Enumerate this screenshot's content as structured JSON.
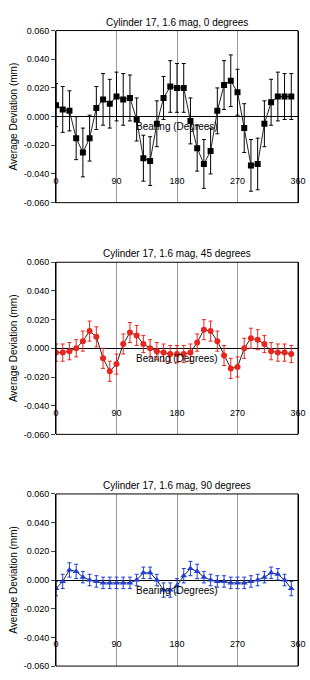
{
  "chart_data": [
    {
      "type": "line",
      "title": "Cylinder 17, 1.6 mag, 0 degrees",
      "xlabel": "Bearing (Degrees)",
      "ylabel": "Average Deviation (mm)",
      "x": [
        0,
        10,
        20,
        30,
        40,
        50,
        60,
        70,
        80,
        90,
        100,
        110,
        120,
        130,
        140,
        150,
        160,
        170,
        180,
        190,
        200,
        210,
        220,
        230,
        240,
        250,
        260,
        270,
        280,
        290,
        300,
        310,
        320,
        330,
        340,
        350
      ],
      "series": [
        {
          "color": "#000000",
          "marker": "square",
          "values": [
            0.008,
            0.005,
            0.004,
            -0.015,
            -0.025,
            -0.015,
            0.006,
            0.012,
            0.009,
            0.014,
            0.012,
            0.013,
            -0.002,
            -0.029,
            -0.031,
            -0.005,
            0.013,
            0.021,
            0.02,
            0.02,
            -0.003,
            -0.022,
            -0.033,
            -0.024,
            0.004,
            0.022,
            0.025,
            0.017,
            -0.008,
            -0.034,
            -0.033,
            -0.005,
            0.01,
            0.014,
            0.014,
            0.014
          ],
          "errors": [
            0.015,
            0.016,
            0.014,
            0.015,
            0.017,
            0.016,
            0.015,
            0.018,
            0.017,
            0.017,
            0.018,
            0.016,
            0.015,
            0.016,
            0.017,
            0.016,
            0.015,
            0.018,
            0.017,
            0.017,
            0.016,
            0.016,
            0.017,
            0.016,
            0.016,
            0.017,
            0.018,
            0.016,
            0.017,
            0.018,
            0.018,
            0.016,
            0.016,
            0.017,
            0.016,
            0.016
          ]
        }
      ],
      "xlim": [
        0,
        360
      ],
      "xticks": [
        0,
        90,
        180,
        270,
        360
      ],
      "ylim": [
        -0.06,
        0.06
      ],
      "yticks": [
        {
          "value": -0.06,
          "label": "-0.060"
        },
        {
          "value": -0.04,
          "label": "-0.040"
        },
        {
          "value": -0.02,
          "label": "-0.020"
        },
        {
          "value": 0,
          "label": "0.000"
        },
        {
          "value": 0.02,
          "label": "0.020"
        },
        {
          "value": 0.04,
          "label": "0.040"
        },
        {
          "value": 0.06,
          "label": "0.060"
        }
      ],
      "grid": true
    },
    {
      "type": "line",
      "title": "Cylinder 17, 1.6 mag, 45 degrees",
      "xlabel": "Bearing (Degrees)",
      "ylabel": "Average Deviation (mm)",
      "x": [
        0,
        10,
        20,
        30,
        40,
        50,
        60,
        70,
        80,
        90,
        100,
        110,
        120,
        130,
        140,
        150,
        160,
        170,
        180,
        190,
        200,
        210,
        220,
        230,
        240,
        250,
        260,
        270,
        280,
        290,
        300,
        310,
        320,
        330,
        340,
        350
      ],
      "series": [
        {
          "color": "#e8251f",
          "marker": "circle",
          "values": [
            -0.003,
            -0.003,
            -0.002,
            0.0,
            0.005,
            0.012,
            0.008,
            -0.007,
            -0.016,
            -0.011,
            0.003,
            0.011,
            0.009,
            0.003,
            0.0,
            -0.002,
            -0.003,
            -0.004,
            -0.004,
            -0.004,
            -0.003,
            0.004,
            0.013,
            0.012,
            0.005,
            -0.005,
            -0.014,
            -0.013,
            0.0,
            0.007,
            0.006,
            0.003,
            -0.002,
            -0.003,
            -0.003,
            -0.004
          ],
          "errors": [
            0.006,
            0.006,
            0.006,
            0.006,
            0.007,
            0.007,
            0.007,
            0.007,
            0.007,
            0.007,
            0.007,
            0.007,
            0.007,
            0.006,
            0.006,
            0.006,
            0.006,
            0.006,
            0.006,
            0.006,
            0.006,
            0.006,
            0.007,
            0.007,
            0.007,
            0.007,
            0.007,
            0.007,
            0.007,
            0.007,
            0.007,
            0.006,
            0.006,
            0.006,
            0.006,
            0.006
          ]
        }
      ],
      "xlim": [
        0,
        360
      ],
      "xticks": [
        0,
        90,
        180,
        270,
        360
      ],
      "ylim": [
        -0.06,
        0.06
      ],
      "yticks": [
        {
          "value": -0.06,
          "label": "-0.060"
        },
        {
          "value": -0.04,
          "label": "-0.040"
        },
        {
          "value": -0.02,
          "label": "-0.020"
        },
        {
          "value": 0,
          "label": "0.000"
        },
        {
          "value": 0.02,
          "label": "0.020"
        },
        {
          "value": 0.04,
          "label": "0.040"
        },
        {
          "value": 0.06,
          "label": "0.060"
        }
      ],
      "grid": true
    },
    {
      "type": "line",
      "title": "Cylinder 17, 1.6 mag, 90 degrees",
      "xlabel": "Bearing (Degrees)",
      "ylabel": "Average Deviation (mm)",
      "x": [
        0,
        10,
        20,
        30,
        40,
        50,
        60,
        70,
        80,
        90,
        100,
        110,
        120,
        130,
        140,
        150,
        160,
        170,
        180,
        190,
        200,
        210,
        220,
        230,
        240,
        250,
        260,
        270,
        280,
        290,
        300,
        310,
        320,
        330,
        340,
        350
      ],
      "series": [
        {
          "color": "#1f3fd6",
          "marker": "triangle-up",
          "values": [
            -0.006,
            -0.001,
            0.007,
            0.006,
            0.002,
            0.0,
            -0.001,
            -0.002,
            -0.002,
            -0.002,
            -0.002,
            -0.002,
            0.0,
            0.005,
            0.005,
            0.0,
            -0.007,
            -0.007,
            -0.004,
            0.003,
            0.008,
            0.006,
            0.002,
            0.0,
            -0.001,
            -0.001,
            -0.002,
            -0.002,
            -0.002,
            -0.001,
            0.0,
            0.002,
            0.005,
            0.004,
            0.0,
            -0.006
          ],
          "errors": [
            0.005,
            0.005,
            0.005,
            0.005,
            0.004,
            0.004,
            0.004,
            0.004,
            0.004,
            0.004,
            0.004,
            0.004,
            0.004,
            0.004,
            0.004,
            0.004,
            0.005,
            0.005,
            0.005,
            0.005,
            0.005,
            0.005,
            0.004,
            0.004,
            0.004,
            0.004,
            0.004,
            0.004,
            0.004,
            0.004,
            0.004,
            0.004,
            0.004,
            0.004,
            0.004,
            0.005
          ]
        }
      ],
      "xlim": [
        0,
        360
      ],
      "xticks": [
        0,
        90,
        180,
        270,
        360
      ],
      "ylim": [
        -0.06,
        0.06
      ],
      "yticks": [
        {
          "value": -0.06,
          "label": "-0.060"
        },
        {
          "value": -0.04,
          "label": "-0.040"
        },
        {
          "value": -0.02,
          "label": "-0.020"
        },
        {
          "value": 0,
          "label": "0.000"
        },
        {
          "value": 0.02,
          "label": "0.020"
        },
        {
          "value": 0.04,
          "label": "0.040"
        },
        {
          "value": 0.06,
          "label": "0.060"
        }
      ],
      "grid": true
    }
  ]
}
